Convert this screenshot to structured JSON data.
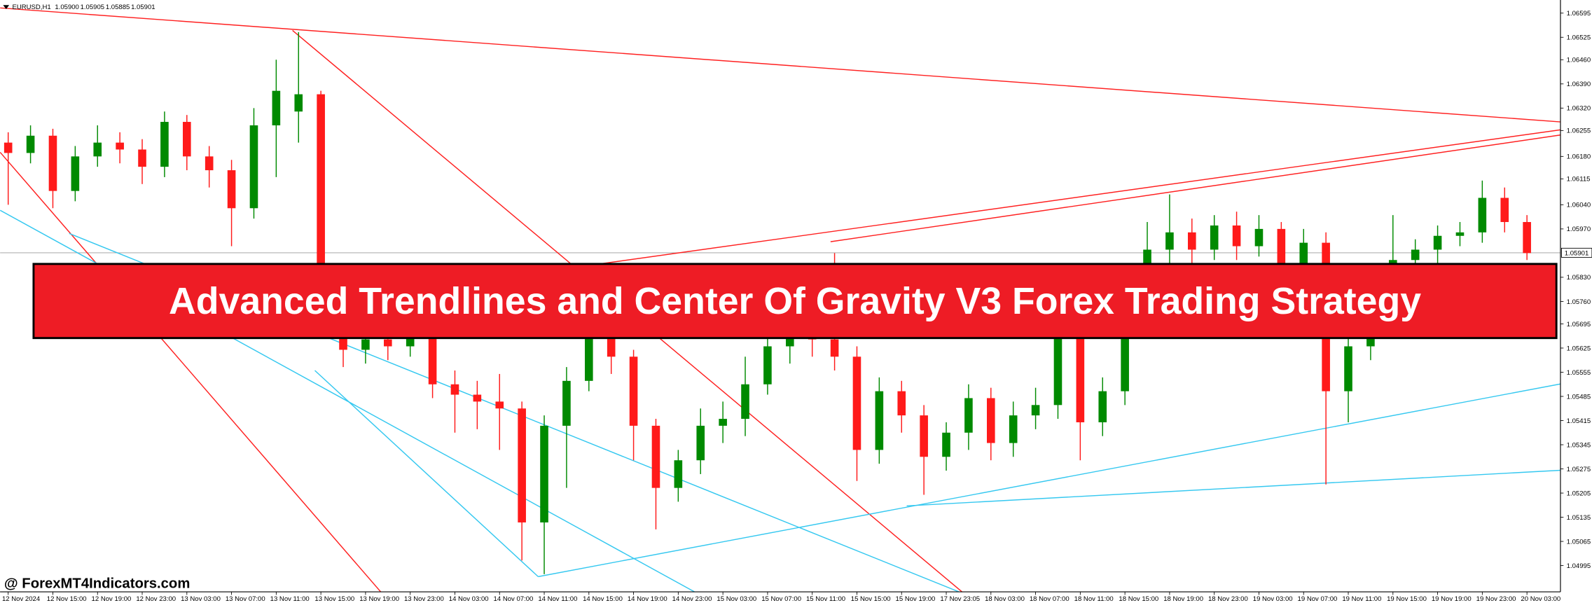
{
  "chart_data": {
    "type": "candlestick",
    "symbol": "EURUSD,H1",
    "header_prices": [
      "1.05900",
      "1.05905",
      "1.05885",
      "1.05901"
    ],
    "banner": "Advanced Trendlines and Center Of Gravity V3 Forex Trading Strategy",
    "watermark": "@ ForexMT4Indicators.com",
    "bull_color": "#008a00",
    "bear_color": "#ff1a1a",
    "categories": [
      "12 Nov 2024",
      null,
      "12 Nov 15:00",
      null,
      "12 Nov 19:00",
      null,
      "12 Nov 23:00",
      null,
      "13 Nov 03:00",
      null,
      "13 Nov 07:00",
      null,
      "13 Nov 11:00",
      null,
      "13 Nov 15:00",
      null,
      "13 Nov 19:00",
      null,
      "13 Nov 23:00",
      null,
      "14 Nov 03:00",
      null,
      "14 Nov 07:00",
      null,
      "14 Nov 11:00",
      null,
      "14 Nov 15:00",
      null,
      "14 Nov 19:00",
      null,
      "14 Nov 23:00",
      null,
      "15 Nov 03:00",
      null,
      "15 Nov 07:00",
      null,
      "15 Nov 11:00",
      null,
      "15 Nov 15:00",
      null,
      "15 Nov 19:00",
      null,
      "17 Nov 23:05",
      null,
      "18 Nov 03:00",
      null,
      "18 Nov 07:00",
      null,
      "18 Nov 11:00",
      null,
      "18 Nov 15:00",
      null,
      "18 Nov 19:00",
      null,
      "18 Nov 23:00",
      null,
      "19 Nov 03:00",
      null,
      "19 Nov 07:00",
      null,
      "19 Nov 11:00",
      null,
      "19 Nov 15:00",
      null,
      "19 Nov 19:00",
      null,
      "19 Nov 23:00",
      null,
      "20 Nov 03:00"
    ],
    "ohlc": [
      [
        1.0622,
        1.0625,
        1.0604,
        1.0619
      ],
      [
        1.0619,
        1.0627,
        1.0616,
        1.0624
      ],
      [
        1.0624,
        1.0626,
        1.0603,
        1.0608
      ],
      [
        1.0608,
        1.0621,
        1.0605,
        1.0618
      ],
      [
        1.0618,
        1.0627,
        1.0615,
        1.0622
      ],
      [
        1.0622,
        1.0625,
        1.0616,
        1.062
      ],
      [
        1.062,
        1.0623,
        1.061,
        1.0615
      ],
      [
        1.0615,
        1.0631,
        1.0612,
        1.0628
      ],
      [
        1.0628,
        1.063,
        1.0614,
        1.0618
      ],
      [
        1.0618,
        1.0621,
        1.0609,
        1.0614
      ],
      [
        1.0614,
        1.0617,
        1.0592,
        1.0603
      ],
      [
        1.0603,
        1.0632,
        1.06,
        1.0627
      ],
      [
        1.0627,
        1.0646,
        1.0612,
        1.0637
      ],
      [
        1.0631,
        1.0654,
        1.0622,
        1.0636
      ],
      [
        1.0636,
        1.0637,
        1.0568,
        1.0575
      ],
      [
        1.0575,
        1.0581,
        1.0557,
        1.0562
      ],
      [
        1.0562,
        1.0568,
        1.0558,
        1.0565
      ],
      [
        1.0565,
        1.0569,
        1.0559,
        1.0563
      ],
      [
        1.0563,
        1.057,
        1.056,
        1.0566
      ],
      [
        1.0566,
        1.0568,
        1.0548,
        1.0552
      ],
      [
        1.0552,
        1.0556,
        1.0538,
        1.0549
      ],
      [
        1.0549,
        1.0553,
        1.0539,
        1.0547
      ],
      [
        1.0547,
        1.0555,
        1.0533,
        1.0545
      ],
      [
        1.0545,
        1.0547,
        1.0501,
        1.0512
      ],
      [
        1.0512,
        1.0543,
        1.0497,
        1.054
      ],
      [
        1.054,
        1.0557,
        1.0522,
        1.0553
      ],
      [
        1.0553,
        1.0572,
        1.055,
        1.0566
      ],
      [
        1.0566,
        1.0569,
        1.0555,
        1.056
      ],
      [
        1.056,
        1.0562,
        1.053,
        1.054
      ],
      [
        1.054,
        1.0542,
        1.051,
        1.0522
      ],
      [
        1.0522,
        1.0533,
        1.0518,
        1.053
      ],
      [
        1.053,
        1.0545,
        1.0526,
        1.054
      ],
      [
        1.054,
        1.0547,
        1.0535,
        1.0542
      ],
      [
        1.0542,
        1.056,
        1.0537,
        1.0552
      ],
      [
        1.0552,
        1.0575,
        1.0549,
        1.0563
      ],
      [
        1.0563,
        1.0572,
        1.0558,
        1.0567
      ],
      [
        1.0567,
        1.057,
        1.056,
        1.0565
      ],
      [
        1.0565,
        1.059,
        1.0556,
        1.056
      ],
      [
        1.056,
        1.0563,
        1.0524,
        1.0533
      ],
      [
        1.0533,
        1.0554,
        1.0529,
        1.055
      ],
      [
        1.055,
        1.0553,
        1.0538,
        1.0543
      ],
      [
        1.0543,
        1.0546,
        1.052,
        1.0531
      ],
      [
        1.0531,
        1.0541,
        1.0527,
        1.0538
      ],
      [
        1.0538,
        1.0552,
        1.0533,
        1.0548
      ],
      [
        1.0548,
        1.0551,
        1.053,
        1.0535
      ],
      [
        1.0535,
        1.0547,
        1.0531,
        1.0543
      ],
      [
        1.0543,
        1.0551,
        1.0539,
        1.0546
      ],
      [
        1.0546,
        1.0578,
        1.0542,
        1.0566
      ],
      [
        1.0566,
        1.0568,
        1.053,
        1.0541
      ],
      [
        1.0541,
        1.0554,
        1.0537,
        1.055
      ],
      [
        1.055,
        1.058,
        1.0546,
        1.0572
      ],
      [
        1.0572,
        1.0599,
        1.0568,
        1.0591
      ],
      [
        1.0591,
        1.0607,
        1.0587,
        1.0596
      ],
      [
        1.0596,
        1.06,
        1.0586,
        1.0591
      ],
      [
        1.0591,
        1.0601,
        1.0588,
        1.0598
      ],
      [
        1.0598,
        1.0602,
        1.0588,
        1.0592
      ],
      [
        1.0592,
        1.0601,
        1.0589,
        1.0597
      ],
      [
        1.0597,
        1.0599,
        1.0582,
        1.0587
      ],
      [
        1.0587,
        1.0597,
        1.0583,
        1.0593
      ],
      [
        1.0593,
        1.0596,
        1.0523,
        1.055
      ],
      [
        1.055,
        1.0567,
        1.0541,
        1.0563
      ],
      [
        1.0563,
        1.058,
        1.0559,
        1.0576
      ],
      [
        1.0576,
        1.0601,
        1.0572,
        1.0588
      ],
      [
        1.0588,
        1.0594,
        1.0584,
        1.0591
      ],
      [
        1.0591,
        1.0598,
        1.0587,
        1.0595
      ],
      [
        1.0595,
        1.0599,
        1.0592,
        1.0596
      ],
      [
        1.0596,
        1.0611,
        1.0593,
        1.0606
      ],
      [
        1.0606,
        1.0609,
        1.0596,
        1.0599
      ],
      [
        1.0599,
        1.0601,
        1.0588,
        1.059
      ]
    ],
    "ylim": [
      1.04919,
      1.06633
    ],
    "yticks": [
      1.06595,
      1.06525,
      {
        "value": 1.0646,
        "label": "1.06460"
      },
      {
        "value": 1.0639,
        "label": "1.06390"
      },
      {
        "value": 1.0632,
        "label": "1.06320"
      },
      1.06255,
      {
        "value": 1.0618,
        "label": "1.06180"
      },
      1.06115,
      {
        "value": 1.0604,
        "label": "1.06040"
      },
      {
        "value": 1.0597,
        "label": "1.05970"
      },
      {
        "value": 1.0583,
        "label": "1.05830"
      },
      {
        "value": 1.0576,
        "label": "1.05760"
      },
      1.05695,
      1.05625,
      1.05555,
      1.05485,
      1.05415,
      1.05345,
      1.05275,
      1.05205,
      1.05135,
      1.05065,
      1.04995
    ],
    "current_price": {
      "value": 1.05901,
      "label": "1.05901"
    },
    "trendlines": [
      {
        "color": "#ff2020",
        "x": [
          -0.36,
          69.5
        ],
        "y": [
          1.0661,
          1.0628
        ]
      },
      {
        "color": "#ff2020",
        "x": [
          12.73,
          44.18
        ],
        "y": [
          1.06545,
          1.04839
        ]
      },
      {
        "color": "#ff2020",
        "x": [
          -0.36,
          16.68
        ],
        "y": [
          1.06192,
          1.04919
        ]
      },
      {
        "color": "#ff2020",
        "x": [
          24.86,
          69.5
        ],
        "y": [
          1.05854,
          1.06257
        ]
      },
      {
        "color": "#ff2020",
        "x": [
          36.82,
          69.5
        ],
        "y": [
          1.05933,
          1.06242
        ]
      },
      {
        "color": "#35c8f0",
        "x": [
          -0.36,
          31.91
        ],
        "y": [
          1.06024,
          1.04877
        ]
      },
      {
        "color": "#35c8f0",
        "x": [
          2.73,
          44.18
        ],
        "y": [
          1.05957,
          1.04877
        ]
      },
      {
        "color": "#35c8f0",
        "x": [
          13.73,
          23.73
        ],
        "y": [
          1.0556,
          1.04963
        ]
      },
      {
        "color": "#35c8f0",
        "x": [
          23.73,
          69.5
        ],
        "y": [
          1.04963,
          1.05521
        ]
      },
      {
        "color": "#35c8f0",
        "x": [
          40.23,
          69.5
        ],
        "y": [
          1.05168,
          1.05271
        ]
      }
    ]
  }
}
